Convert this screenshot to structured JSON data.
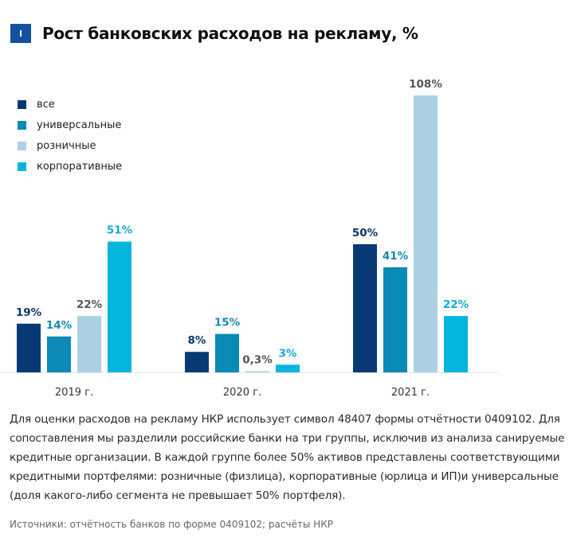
{
  "header": {
    "badge": "I",
    "title": "Рост банковских расходов на рекламу, %"
  },
  "legend": [
    {
      "label": "все",
      "color": "#073a75"
    },
    {
      "label": "универсальные",
      "color": "#0a8ab5"
    },
    {
      "label": "розничные",
      "color": "#acd0e4"
    },
    {
      "label": "корпоративные",
      "color": "#06b5dc"
    }
  ],
  "chart_data": {
    "type": "bar",
    "title": "Рост банковских расходов на рекламу, %",
    "xlabel": "",
    "ylabel": "%",
    "ylim": [
      0,
      110
    ],
    "grid": false,
    "legend_position": "top-left",
    "categories": [
      "2019 г.",
      "2020 г.",
      "2021 г."
    ],
    "series": [
      {
        "name": "все",
        "color": "#073a75",
        "label_color": "#0b3668",
        "values": [
          19,
          8,
          50
        ],
        "labels": [
          "19%",
          "8%",
          "50%"
        ]
      },
      {
        "name": "универсальные",
        "color": "#0a8ab5",
        "label_color": "#1a86ad",
        "values": [
          14,
          15,
          41
        ],
        "labels": [
          "14%",
          "15%",
          "41%"
        ]
      },
      {
        "name": "розничные",
        "color": "#acd0e4",
        "label_color": "#555555",
        "values": [
          22,
          0.3,
          108
        ],
        "labels": [
          "22%",
          "0,3%",
          "108%"
        ]
      },
      {
        "name": "корпоративные",
        "color": "#06b5dc",
        "label_color": "#14aad3",
        "values": [
          51,
          3,
          22
        ],
        "labels": [
          "51%",
          "3%",
          "22%"
        ]
      }
    ]
  },
  "note": "Для оценки расходов на рекламу НКР использует символ 48407 формы отчётности 0409102. Для сопоставления мы разделили российские банки на три группы, исключив из анализа санируемые кредитные организации. В каждой группе более 50% активов представлены соответствующими кредитными портфелями: розничные (физлица), корпоративные (юрлица и ИП)и универсальные (доля какого-либо сегмента не превышает 50% портфеля).",
  "source": "Источники: отчётность банков по форме 0409102; расчёты НКР"
}
